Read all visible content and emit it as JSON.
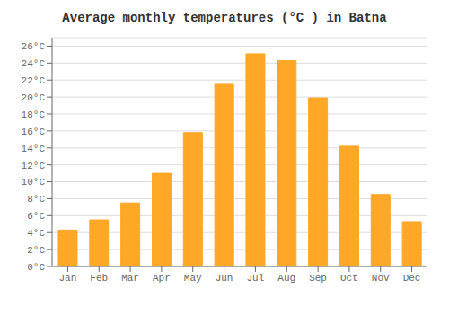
{
  "chart_data": {
    "type": "bar",
    "title": "Average monthly temperatures (°C ) in Batna",
    "categories": [
      "Jan",
      "Feb",
      "Mar",
      "Apr",
      "May",
      "Jun",
      "Jul",
      "Aug",
      "Sep",
      "Oct",
      "Nov",
      "Dec"
    ],
    "values": [
      4.3,
      5.5,
      7.5,
      11.0,
      15.8,
      21.5,
      25.1,
      24.3,
      19.9,
      14.2,
      8.5,
      5.3
    ],
    "color": "#FFA726",
    "ylim": [
      0,
      27
    ],
    "yticks": [
      {
        "value": 0,
        "label": "0°C"
      },
      {
        "value": 2,
        "label": "2°C"
      },
      {
        "value": 4,
        "label": "4°C"
      },
      {
        "value": 6,
        "label": "6°C"
      },
      {
        "value": 8,
        "label": "8°C"
      },
      {
        "value": 10,
        "label": "10°C"
      },
      {
        "value": 12,
        "label": "12°C"
      },
      {
        "value": 14,
        "label": "14°C"
      },
      {
        "value": 16,
        "label": "16°C"
      },
      {
        "value": 18,
        "label": "18°C"
      },
      {
        "value": 20,
        "label": "20°C"
      },
      {
        "value": 22,
        "label": "22°C"
      },
      {
        "value": 24,
        "label": "24°C"
      },
      {
        "value": 26,
        "label": "26°C"
      }
    ],
    "grid": true
  }
}
